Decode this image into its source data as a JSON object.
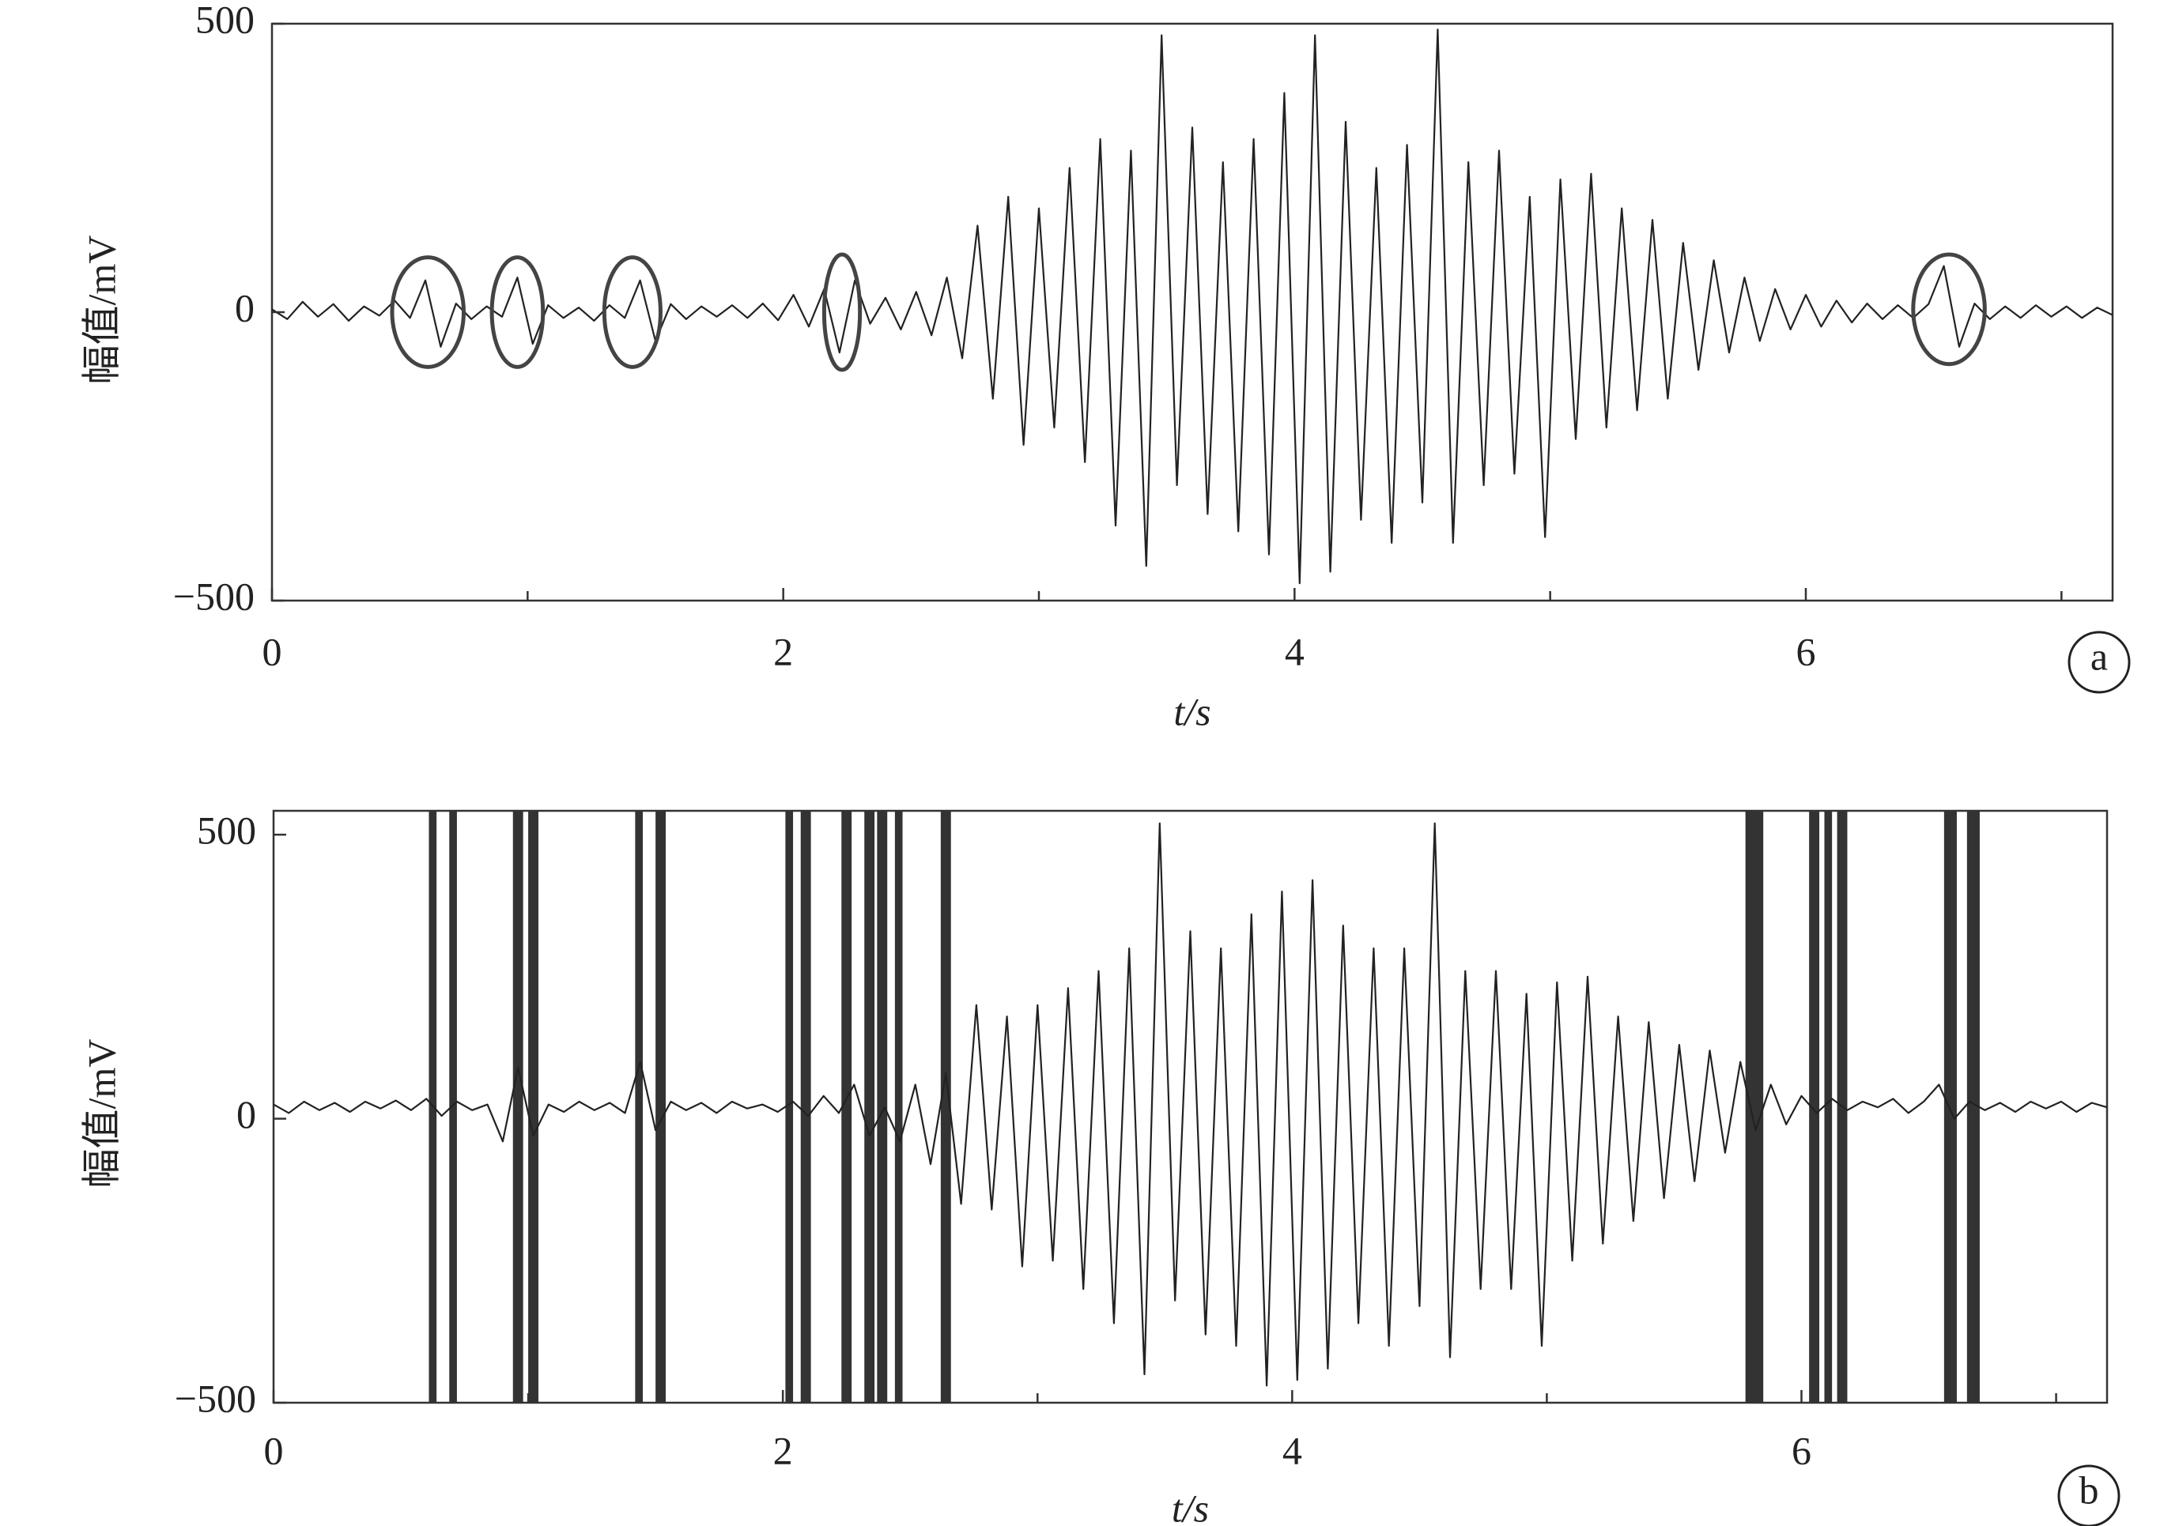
{
  "chart_data": [
    {
      "type": "line",
      "panel_label": "a",
      "ylabel": "幅值/mV",
      "xlabel": "t/s",
      "color": "#222222",
      "xlim": [
        0,
        7.2
      ],
      "ylim": [
        -500,
        500
      ],
      "xticks": [
        0,
        2,
        4,
        6
      ],
      "xminorticks": [
        1,
        3,
        5,
        7
      ],
      "yticks": [
        {
          "value": -500,
          "label": "−500"
        },
        0,
        500
      ],
      "x": [
        0,
        0.06,
        0.12,
        0.18,
        0.24,
        0.3,
        0.36,
        0.42,
        0.48,
        0.54,
        0.6,
        0.66,
        0.72,
        0.78,
        0.84,
        0.9,
        0.96,
        1.02,
        1.08,
        1.14,
        1.2,
        1.26,
        1.32,
        1.38,
        1.44,
        1.5,
        1.56,
        1.62,
        1.68,
        1.74,
        1.8,
        1.86,
        1.92,
        1.98,
        2.04,
        2.1,
        2.16,
        2.22,
        2.28,
        2.34,
        2.4,
        2.46,
        2.52,
        2.58,
        2.64,
        2.7,
        2.76,
        2.82,
        2.88,
        2.94,
        3,
        3.06,
        3.12,
        3.18,
        3.24,
        3.3,
        3.36,
        3.42,
        3.48,
        3.54,
        3.6,
        3.66,
        3.72,
        3.78,
        3.84,
        3.9,
        3.96,
        4.02,
        4.08,
        4.14,
        4.2,
        4.26,
        4.32,
        4.38,
        4.44,
        4.5,
        4.56,
        4.62,
        4.68,
        4.74,
        4.8,
        4.86,
        4.92,
        4.98,
        5.04,
        5.1,
        5.16,
        5.22,
        5.28,
        5.34,
        5.4,
        5.46,
        5.52,
        5.58,
        5.64,
        5.7,
        5.76,
        5.82,
        5.88,
        5.94,
        6,
        6.06,
        6.12,
        6.18,
        6.24,
        6.3,
        6.36,
        6.42,
        6.48,
        6.54,
        6.6,
        6.66,
        6.72,
        6.78,
        6.84,
        6.9,
        6.96,
        7.02,
        7.08,
        7.14,
        7.2
      ],
      "values": [
        5,
        -12,
        18,
        -8,
        14,
        -15,
        10,
        -6,
        20,
        -10,
        55,
        -60,
        15,
        -12,
        10,
        -8,
        60,
        -55,
        12,
        -10,
        8,
        -15,
        12,
        -10,
        55,
        -50,
        14,
        -12,
        10,
        -8,
        12,
        -10,
        15,
        -14,
        30,
        -25,
        40,
        -70,
        55,
        -20,
        25,
        -30,
        35,
        -40,
        60,
        -80,
        150,
        -150,
        200,
        -230,
        180,
        -200,
        250,
        -260,
        300,
        -370,
        280,
        -440,
        480,
        -300,
        320,
        -350,
        260,
        -380,
        300,
        -420,
        380,
        -470,
        480,
        -450,
        330,
        -360,
        250,
        -400,
        290,
        -330,
        490,
        -400,
        260,
        -300,
        280,
        -280,
        200,
        -390,
        230,
        -220,
        240,
        -200,
        180,
        -170,
        160,
        -150,
        120,
        -100,
        90,
        -70,
        60,
        -50,
        40,
        -30,
        30,
        -25,
        20,
        -18,
        15,
        -12,
        12,
        -10,
        14,
        80,
        -60,
        15,
        -12,
        10,
        -10,
        12,
        -8,
        10,
        -10,
        8,
        -5
      ],
      "highlights": [
        {
          "x": [
            0.47,
            0.75
          ],
          "y": [
            -95,
            95
          ]
        },
        {
          "x": [
            0.86,
            1.06
          ],
          "y": [
            -95,
            95
          ]
        },
        {
          "x": [
            1.3,
            1.52
          ],
          "y": [
            -95,
            95
          ]
        },
        {
          "x": [
            2.16,
            2.3
          ],
          "y": [
            -100,
            100
          ]
        },
        {
          "x": [
            6.42,
            6.7
          ],
          "y": [
            -90,
            100
          ]
        }
      ]
    },
    {
      "type": "line",
      "panel_label": "b",
      "ylabel": "幅值/mV",
      "xlabel": "t/s",
      "color": "#222222",
      "band_color": "#333333",
      "xlim": [
        0,
        7.2
      ],
      "ylim": [
        -500,
        542
      ],
      "xticks": [
        0,
        2,
        4,
        6
      ],
      "xminorticks": [
        1,
        3,
        5,
        7
      ],
      "yticks": [
        {
          "value": -500,
          "label": "−500"
        },
        0,
        500
      ],
      "x": [
        0,
        0.06,
        0.12,
        0.18,
        0.24,
        0.3,
        0.36,
        0.42,
        0.48,
        0.54,
        0.6,
        0.66,
        0.72,
        0.78,
        0.84,
        0.9,
        0.96,
        1.02,
        1.08,
        1.14,
        1.2,
        1.26,
        1.32,
        1.38,
        1.44,
        1.5,
        1.56,
        1.62,
        1.68,
        1.74,
        1.8,
        1.86,
        1.92,
        1.98,
        2.04,
        2.1,
        2.16,
        2.22,
        2.28,
        2.34,
        2.4,
        2.46,
        2.52,
        2.58,
        2.64,
        2.7,
        2.76,
        2.82,
        2.88,
        2.94,
        3,
        3.06,
        3.12,
        3.18,
        3.24,
        3.3,
        3.36,
        3.42,
        3.48,
        3.54,
        3.6,
        3.66,
        3.72,
        3.78,
        3.84,
        3.9,
        3.96,
        4.02,
        4.08,
        4.14,
        4.2,
        4.26,
        4.32,
        4.38,
        4.44,
        4.5,
        4.56,
        4.62,
        4.68,
        4.74,
        4.8,
        4.86,
        4.92,
        4.98,
        5.04,
        5.1,
        5.16,
        5.22,
        5.28,
        5.34,
        5.4,
        5.46,
        5.52,
        5.58,
        5.64,
        5.7,
        5.76,
        5.82,
        5.88,
        5.94,
        6,
        6.06,
        6.12,
        6.18,
        6.24,
        6.3,
        6.36,
        6.42,
        6.48,
        6.54,
        6.6,
        6.66,
        6.72,
        6.78,
        6.84,
        6.9,
        6.96,
        7.02,
        7.08,
        7.14,
        7.2
      ],
      "values": [
        25,
        10,
        30,
        15,
        28,
        12,
        30,
        18,
        32,
        15,
        35,
        5,
        30,
        15,
        25,
        -40,
        90,
        -30,
        25,
        12,
        30,
        15,
        28,
        10,
        100,
        -20,
        30,
        15,
        28,
        10,
        30,
        18,
        25,
        12,
        30,
        5,
        40,
        10,
        60,
        -30,
        20,
        -40,
        60,
        -80,
        80,
        -150,
        200,
        -160,
        180,
        -260,
        200,
        -250,
        230,
        -300,
        260,
        -360,
        300,
        -450,
        520,
        -320,
        330,
        -380,
        300,
        -400,
        360,
        -470,
        400,
        -460,
        420,
        -440,
        340,
        -360,
        300,
        -400,
        300,
        -330,
        520,
        -420,
        260,
        -300,
        260,
        -300,
        220,
        -400,
        240,
        -250,
        250,
        -220,
        180,
        -180,
        170,
        -140,
        130,
        -110,
        120,
        -60,
        100,
        -20,
        60,
        -10,
        40,
        10,
        35,
        15,
        30,
        20,
        35,
        10,
        30,
        60,
        0,
        30,
        15,
        28,
        12,
        30,
        18,
        30,
        12,
        28,
        20
      ],
      "bands": [
        [
          0.61,
          0.64
        ],
        [
          0.69,
          0.72
        ],
        [
          0.94,
          0.98
        ],
        [
          1.0,
          1.04
        ],
        [
          1.42,
          1.45
        ],
        [
          1.5,
          1.54
        ],
        [
          2.01,
          2.04
        ],
        [
          2.07,
          2.11
        ],
        [
          2.23,
          2.27
        ],
        [
          2.32,
          2.36
        ],
        [
          2.37,
          2.41
        ],
        [
          2.44,
          2.47
        ],
        [
          2.62,
          2.66
        ],
        [
          5.78,
          5.85
        ],
        [
          6.03,
          6.07
        ],
        [
          6.09,
          6.12
        ],
        [
          6.14,
          6.18
        ],
        [
          6.56,
          6.61
        ],
        [
          6.65,
          6.7
        ]
      ]
    }
  ]
}
